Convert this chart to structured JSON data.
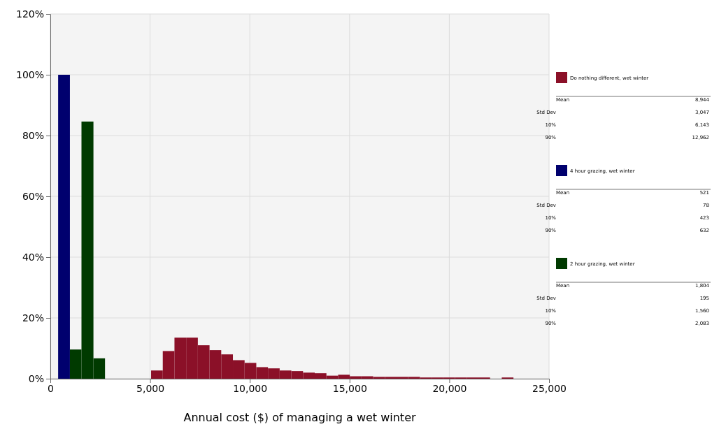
{
  "chart_data": {
    "type": "histogram",
    "xlabel": "Annual cost ($) of managing a wet winter",
    "xlim": [
      0,
      25000
    ],
    "xticks": [
      0,
      {
        "value": 5000,
        "label": "5,000"
      },
      {
        "value": 10000,
        "label": "10,000"
      },
      {
        "value": 15000,
        "label": "15,000"
      },
      {
        "value": 20000,
        "label": "20,000"
      },
      {
        "value": 25000,
        "label": "25,000"
      }
    ],
    "ylim": [
      0,
      120
    ],
    "yticks": [
      {
        "value": 0,
        "label": "0%"
      },
      {
        "value": 20,
        "label": "20%"
      },
      {
        "value": 40,
        "label": "40%"
      },
      {
        "value": 60,
        "label": "60%"
      },
      {
        "value": 80,
        "label": "80%"
      },
      {
        "value": 100,
        "label": "100%"
      },
      {
        "value": 120,
        "label": "120%"
      }
    ],
    "grid": true,
    "legend": "right",
    "bins": [
      390,
      980,
      1560,
      2160,
      2740,
      5050,
      5636,
      6222,
      6808,
      7394,
      7980,
      8566,
      9152,
      9738,
      10324,
      10910,
      11496,
      12082,
      12668,
      13254,
      13840,
      14426,
      15012,
      15598,
      16184,
      16770,
      17356,
      17942,
      18528,
      19114,
      19700,
      20286,
      20872,
      21458,
      22044,
      22630,
      23216
    ],
    "series": [
      {
        "name": "Do nothing different, wet winter",
        "color": "#8b1028",
        "values": [
          null,
          null,
          null,
          null,
          null,
          2.7,
          9.1,
          13.5,
          13.5,
          11.0,
          9.4,
          8.0,
          6.1,
          5.2,
          3.8,
          3.4,
          2.7,
          2.5,
          2.0,
          1.8,
          1.0,
          1.3,
          0.8,
          0.8,
          0.6,
          0.6,
          0.6,
          0.6,
          0.4,
          0.4,
          0.4,
          0.4,
          0.4,
          0.4,
          null,
          0.4
        ]
      },
      {
        "name": "4 hour grazing, wet winter",
        "color": "#00006e",
        "values": [
          100,
          null,
          null,
          null,
          null,
          null,
          null,
          null,
          null,
          null,
          null,
          null,
          null,
          null,
          null,
          null,
          null,
          null,
          null,
          null,
          null,
          null,
          null,
          null,
          null,
          null,
          null,
          null,
          null,
          null,
          null,
          null,
          null,
          null,
          null,
          null
        ]
      },
      {
        "name": "2 hour grazing, wet winter",
        "color": "#003a00",
        "values": [
          null,
          9.6,
          84.6,
          6.7,
          null,
          null,
          null,
          null,
          null,
          null,
          null,
          null,
          null,
          null,
          null,
          null,
          null,
          null,
          null,
          null,
          null,
          null,
          null,
          null,
          null,
          null,
          null,
          null,
          null,
          null,
          null,
          null,
          null,
          null,
          null,
          null
        ]
      }
    ],
    "annotations": [
      "Mean",
      "8,944",
      "Std Dev",
      "3,047",
      "10%",
      "6,143",
      "90%",
      "12,962",
      "Mean",
      "521",
      "Std Dev",
      "78",
      "10%",
      "423",
      "90%",
      "632",
      "Mean",
      "1,804",
      "Std Dev",
      "195",
      "10%",
      "1,560",
      "90%",
      "2,083"
    ]
  }
}
